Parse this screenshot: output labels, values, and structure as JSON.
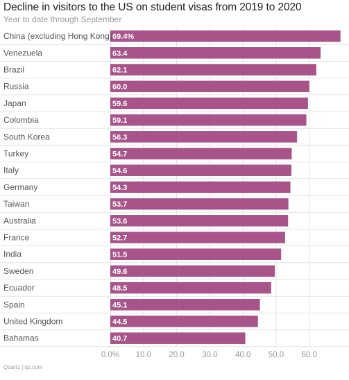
{
  "chart_data": {
    "type": "bar",
    "orientation": "horizontal",
    "title": "Decline in visitors to the US on student visas from 2019 to 2020",
    "subtitle": "Year to date through September",
    "categories": [
      "China (excluding Hong Kong)",
      "Venezuela",
      "Brazil",
      "Russia",
      "Japan",
      "Colombia",
      "South Korea",
      "Turkey",
      "Italy",
      "Germany",
      "Taiwan",
      "Australia",
      "France",
      "India",
      "Sweden",
      "Ecuador",
      "Spain",
      "United Kingdom",
      "Bahamas"
    ],
    "values": [
      69.4,
      63.4,
      62.1,
      60.0,
      59.6,
      59.1,
      56.3,
      54.7,
      54.6,
      54.3,
      53.7,
      53.6,
      52.7,
      51.5,
      49.6,
      48.5,
      45.1,
      44.5,
      40.7
    ],
    "value_labels": [
      "69.4%",
      "63.4",
      "62.1",
      "60.0",
      "59.6",
      "59.1",
      "56.3",
      "54.7",
      "54.6",
      "54.3",
      "53.7",
      "53.6",
      "52.7",
      "51.5",
      "49.6",
      "48.5",
      "45.1",
      "44.5",
      "40.7"
    ],
    "xlim": [
      0,
      70
    ],
    "xticks": [
      0,
      10,
      20,
      30,
      40,
      50,
      60
    ],
    "xtick_labels": [
      "0.0%",
      "10.0",
      "20.0",
      "30.0",
      "40.0",
      "50.0",
      "60.0"
    ],
    "bar_color": "#a8538a",
    "grid": true,
    "source": "Quartz | qz.com"
  }
}
